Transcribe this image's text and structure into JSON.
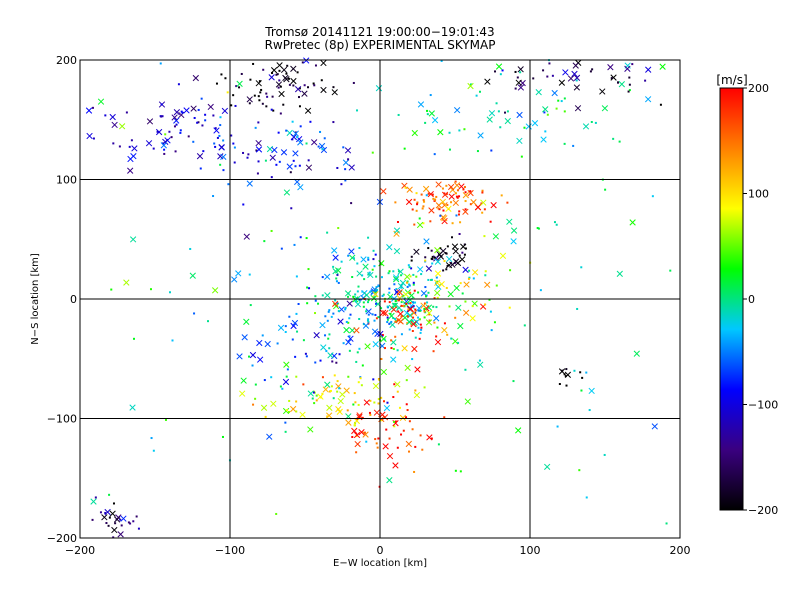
{
  "chart_data": {
    "type": "scatter",
    "title": "Tromsø 20141121 19:00:00−19:01:43",
    "subtitle": "RwPretec (8p) EXPERIMENTAL SKYMAP",
    "xlabel": "E−W location [km]",
    "ylabel": "N−S location [km]",
    "xlim": [
      -200,
      200
    ],
    "ylim": [
      -200,
      200
    ],
    "x_ticks": [
      -200,
      -100,
      0,
      100,
      200
    ],
    "y_ticks": [
      -200,
      -100,
      0,
      100,
      200
    ],
    "x_tick_labels": [
      "−200",
      "−100",
      "0",
      "100",
      "200"
    ],
    "y_tick_labels": [
      "−200",
      "−100",
      "0",
      "100",
      "200"
    ],
    "grid": true,
    "marker_styles": [
      "cross",
      "dot"
    ],
    "colorbar": {
      "unit": "[m/s]",
      "range": [
        -200,
        200
      ],
      "ticks": [
        200,
        100,
        0,
        -100,
        -200
      ],
      "tick_labels": [
        "200",
        "100",
        "0",
        "−100",
        "−200"
      ],
      "colormap_stops": [
        "#000000",
        "#3a0080",
        "#0000ff",
        "#00c8ff",
        "#00ff00",
        "#ffff00",
        "#ff8000",
        "#ff0000"
      ],
      "placement": "right"
    },
    "clusters": [
      {
        "x": -65,
        "y": 180,
        "sx": 18,
        "sy": 12,
        "n": 70,
        "velocity": -195
      },
      {
        "x": -140,
        "y": 140,
        "sx": 30,
        "sy": 15,
        "n": 80,
        "velocity": -110
      },
      {
        "x": -60,
        "y": 120,
        "sx": 28,
        "sy": 20,
        "n": 70,
        "velocity": -90
      },
      {
        "x": 45,
        "y": 80,
        "sx": 15,
        "sy": 10,
        "n": 90,
        "velocity": 160
      },
      {
        "x": 42,
        "y": 35,
        "sx": 10,
        "sy": 8,
        "n": 40,
        "velocity": -190
      },
      {
        "x": 0,
        "y": 0,
        "sx": 25,
        "sy": 25,
        "n": 260,
        "velocity": -20
      },
      {
        "x": 20,
        "y": -15,
        "sx": 15,
        "sy": 12,
        "n": 60,
        "velocity": 180
      },
      {
        "x": -25,
        "y": -85,
        "sx": 25,
        "sy": 12,
        "n": 80,
        "velocity": 90
      },
      {
        "x": 5,
        "y": -110,
        "sx": 15,
        "sy": 15,
        "n": 50,
        "velocity": 190
      },
      {
        "x": 125,
        "y": -65,
        "sx": 5,
        "sy": 6,
        "n": 10,
        "velocity": -200
      },
      {
        "x": -175,
        "y": -185,
        "sx": 10,
        "sy": 10,
        "n": 25,
        "velocity": -140
      },
      {
        "x": 75,
        "y": 145,
        "sx": 45,
        "sy": 25,
        "n": 60,
        "velocity": -10
      },
      {
        "x": 140,
        "y": 185,
        "sx": 35,
        "sy": 12,
        "n": 50,
        "velocity": -160
      },
      {
        "x": 50,
        "y": 10,
        "sx": 20,
        "sy": 15,
        "n": 40,
        "velocity": 90
      },
      {
        "x": -50,
        "y": -40,
        "sx": 20,
        "sy": 15,
        "n": 40,
        "velocity": -60
      },
      {
        "x": 0,
        "y": 0,
        "sx": 110,
        "sy": 110,
        "n": 180,
        "velocity": 0
      }
    ]
  }
}
